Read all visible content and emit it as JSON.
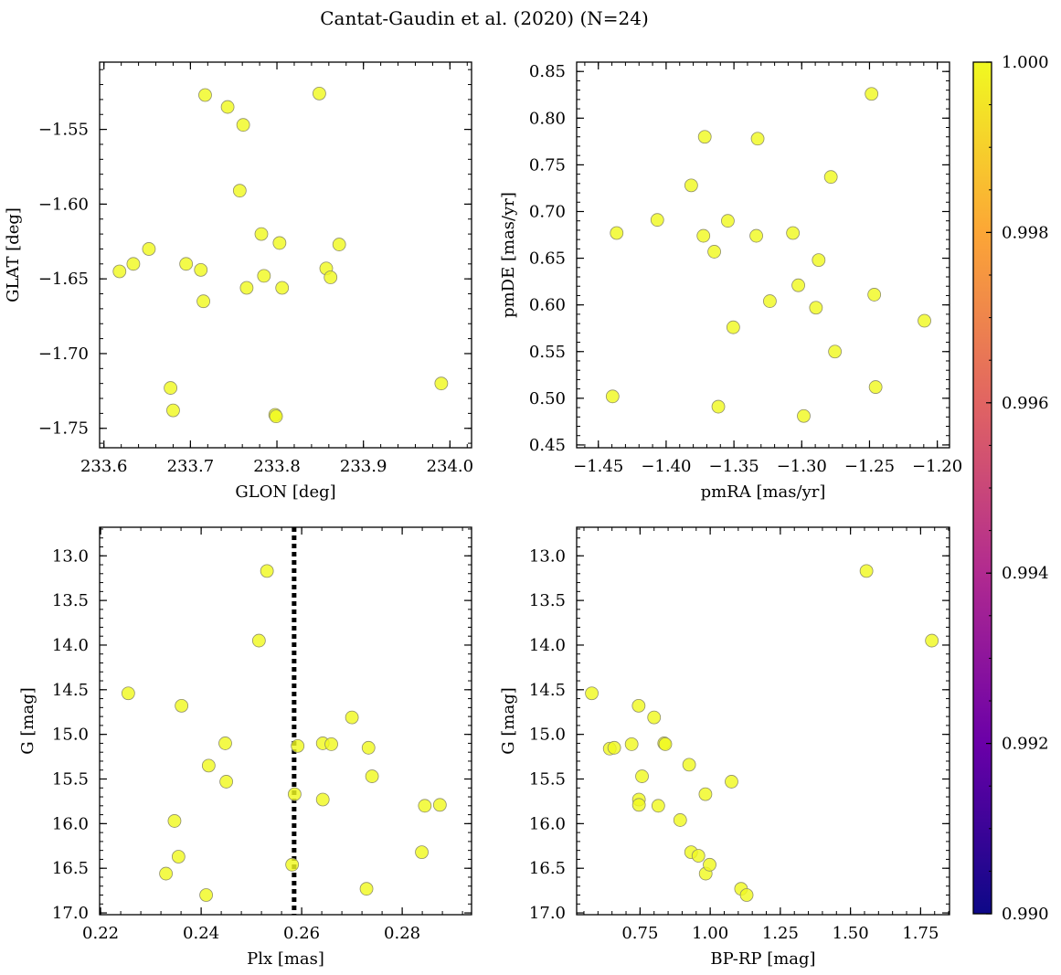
{
  "figure": {
    "title": "Cantat-Gaudin et al. (2020) (N=24)"
  },
  "colorbar": {
    "min": 0.99,
    "max": 1.0,
    "ticks": [
      0.99,
      0.992,
      0.994,
      0.996,
      0.998,
      1.0
    ],
    "tick_labels": [
      "0.990",
      "0.992",
      "0.994",
      "0.996",
      "0.998",
      "1.000"
    ],
    "colormap": [
      "#0d0887",
      "#6a00a8",
      "#b12a90",
      "#e16462",
      "#fca636",
      "#f0f921"
    ]
  },
  "chart_data": [
    {
      "type": "scatter",
      "name": "sky-position",
      "xlabel": "GLON [deg]",
      "ylabel": "GLAT [deg]",
      "xlim": [
        233.595,
        234.025
      ],
      "ylim": [
        -1.763,
        -1.505
      ],
      "xticks": [
        233.6,
        233.7,
        233.8,
        233.9,
        234.0
      ],
      "xtick_labels": [
        "233.6",
        "233.7",
        "233.8",
        "233.9",
        "234.0"
      ],
      "yticks": [
        -1.75,
        -1.7,
        -1.65,
        -1.6,
        -1.55
      ],
      "ytick_labels": [
        "−1.75",
        "−1.70",
        "−1.65",
        "−1.60",
        "−1.55"
      ],
      "y_inverted": false,
      "point_color": "#f0f921",
      "points": [
        [
          233.618,
          -1.645
        ],
        [
          233.634,
          -1.64
        ],
        [
          233.652,
          -1.63
        ],
        [
          233.677,
          -1.723
        ],
        [
          233.68,
          -1.738
        ],
        [
          233.695,
          -1.64
        ],
        [
          233.712,
          -1.644
        ],
        [
          233.715,
          -1.665
        ],
        [
          233.717,
          -1.527
        ],
        [
          233.743,
          -1.535
        ],
        [
          233.757,
          -1.591
        ],
        [
          233.761,
          -1.547
        ],
        [
          233.765,
          -1.656
        ],
        [
          233.782,
          -1.62
        ],
        [
          233.785,
          -1.648
        ],
        [
          233.798,
          -1.741
        ],
        [
          233.799,
          -1.742
        ],
        [
          233.803,
          -1.626
        ],
        [
          233.806,
          -1.656
        ],
        [
          233.849,
          -1.526
        ],
        [
          233.857,
          -1.643
        ],
        [
          233.862,
          -1.649
        ],
        [
          233.872,
          -1.627
        ],
        [
          233.99,
          -1.72
        ]
      ]
    },
    {
      "type": "scatter",
      "name": "proper-motion",
      "xlabel": "pmRA [mas/yr]",
      "ylabel": "pmDE [mas/yr]",
      "xlim": [
        -1.466,
        -1.191
      ],
      "ylim": [
        0.447,
        0.86
      ],
      "xticks": [
        -1.45,
        -1.4,
        -1.35,
        -1.3,
        -1.25,
        -1.2
      ],
      "xtick_labels": [
        "−1.45",
        "−1.40",
        "−1.35",
        "−1.30",
        "−1.25",
        "−1.20"
      ],
      "yticks": [
        0.45,
        0.5,
        0.55,
        0.6,
        0.65,
        0.7,
        0.75,
        0.8,
        0.85
      ],
      "ytick_labels": [
        "0.45",
        "0.50",
        "0.55",
        "0.60",
        "0.65",
        "0.70",
        "0.75",
        "0.80",
        "0.85"
      ],
      "y_inverted": false,
      "point_color": "#f0f921",
      "points": [
        [
          -1.4395,
          0.502
        ],
        [
          -1.4365,
          0.677
        ],
        [
          -1.4065,
          0.691
        ],
        [
          -1.3815,
          0.728
        ],
        [
          -1.3725,
          0.674
        ],
        [
          -1.3715,
          0.78
        ],
        [
          -1.3645,
          0.657
        ],
        [
          -1.3615,
          0.491
        ],
        [
          -1.3545,
          0.69
        ],
        [
          -1.3505,
          0.576
        ],
        [
          -1.3335,
          0.674
        ],
        [
          -1.3325,
          0.778
        ],
        [
          -1.3235,
          0.604
        ],
        [
          -1.3065,
          0.677
        ],
        [
          -1.3025,
          0.621
        ],
        [
          -1.2985,
          0.481
        ],
        [
          -1.2895,
          0.597
        ],
        [
          -1.2875,
          0.648
        ],
        [
          -1.2785,
          0.737
        ],
        [
          -1.2755,
          0.55
        ],
        [
          -1.2485,
          0.826
        ],
        [
          -1.2465,
          0.611
        ],
        [
          -1.2455,
          0.512
        ],
        [
          -1.2095,
          0.583
        ]
      ]
    },
    {
      "type": "scatter",
      "name": "parallax-magnitude",
      "xlabel": "Plx [mas]",
      "ylabel": "G [mag]",
      "xlim": [
        0.2198,
        0.2938
      ],
      "ylim": [
        17.02,
        12.68
      ],
      "xticks": [
        0.22,
        0.24,
        0.26,
        0.28
      ],
      "xtick_labels": [
        "0.22",
        "0.24",
        "0.26",
        "0.28"
      ],
      "yticks": [
        13.0,
        13.5,
        14.0,
        14.5,
        15.0,
        15.5,
        16.0,
        16.5,
        17.0
      ],
      "ytick_labels": [
        "13.0",
        "13.5",
        "14.0",
        "14.5",
        "15.0",
        "15.5",
        "16.0",
        "16.5",
        "17.0"
      ],
      "y_inverted": true,
      "vline": {
        "x": 0.2585,
        "style": "dotted",
        "color": "#000000"
      },
      "point_color": "#f0f921",
      "points": [
        [
          0.2255,
          14.54
        ],
        [
          0.233,
          16.56
        ],
        [
          0.2347,
          15.97
        ],
        [
          0.2355,
          16.37
        ],
        [
          0.2361,
          14.68
        ],
        [
          0.241,
          16.8
        ],
        [
          0.2415,
          15.35
        ],
        [
          0.2448,
          15.1
        ],
        [
          0.245,
          15.53
        ],
        [
          0.2515,
          13.95
        ],
        [
          0.2531,
          13.17
        ],
        [
          0.2581,
          16.46
        ],
        [
          0.2586,
          15.67
        ],
        [
          0.2592,
          15.13
        ],
        [
          0.2642,
          15.1
        ],
        [
          0.2642,
          15.73
        ],
        [
          0.2659,
          15.11
        ],
        [
          0.27,
          14.81
        ],
        [
          0.2729,
          16.73
        ],
        [
          0.2733,
          15.15
        ],
        [
          0.274,
          15.47
        ],
        [
          0.2839,
          16.32
        ],
        [
          0.2845,
          15.8
        ],
        [
          0.2875,
          15.79
        ]
      ]
    },
    {
      "type": "scatter",
      "name": "color-magnitude",
      "xlabel": "BP-RP [mag]",
      "ylabel": "G [mag]",
      "xlim": [
        0.524,
        1.853
      ],
      "ylim": [
        17.02,
        12.68
      ],
      "xticks": [
        0.75,
        1.0,
        1.25,
        1.5,
        1.75
      ],
      "xtick_labels": [
        "0.75",
        "1.00",
        "1.25",
        "1.50",
        "1.75"
      ],
      "yticks": [
        13.0,
        13.5,
        14.0,
        14.5,
        15.0,
        15.5,
        16.0,
        16.5,
        17.0
      ],
      "ytick_labels": [
        "13.0",
        "13.5",
        "14.0",
        "14.5",
        "15.0",
        "15.5",
        "16.0",
        "16.5",
        "17.0"
      ],
      "y_inverted": true,
      "point_color": "#f0f921",
      "points": [
        [
          0.578,
          14.54
        ],
        [
          0.642,
          15.16
        ],
        [
          0.658,
          15.15
        ],
        [
          0.72,
          15.11
        ],
        [
          0.745,
          14.68
        ],
        [
          0.746,
          15.73
        ],
        [
          0.746,
          15.79
        ],
        [
          0.757,
          15.47
        ],
        [
          0.8,
          14.81
        ],
        [
          0.815,
          15.8
        ],
        [
          0.836,
          15.1
        ],
        [
          0.84,
          15.11
        ],
        [
          0.893,
          15.96
        ],
        [
          0.925,
          15.34
        ],
        [
          0.932,
          16.32
        ],
        [
          0.958,
          16.36
        ],
        [
          0.983,
          15.67
        ],
        [
          0.984,
          16.56
        ],
        [
          0.998,
          16.46
        ],
        [
          1.076,
          15.53
        ],
        [
          1.11,
          16.73
        ],
        [
          1.13,
          16.8
        ],
        [
          1.557,
          13.17
        ],
        [
          1.79,
          13.95
        ]
      ]
    }
  ]
}
